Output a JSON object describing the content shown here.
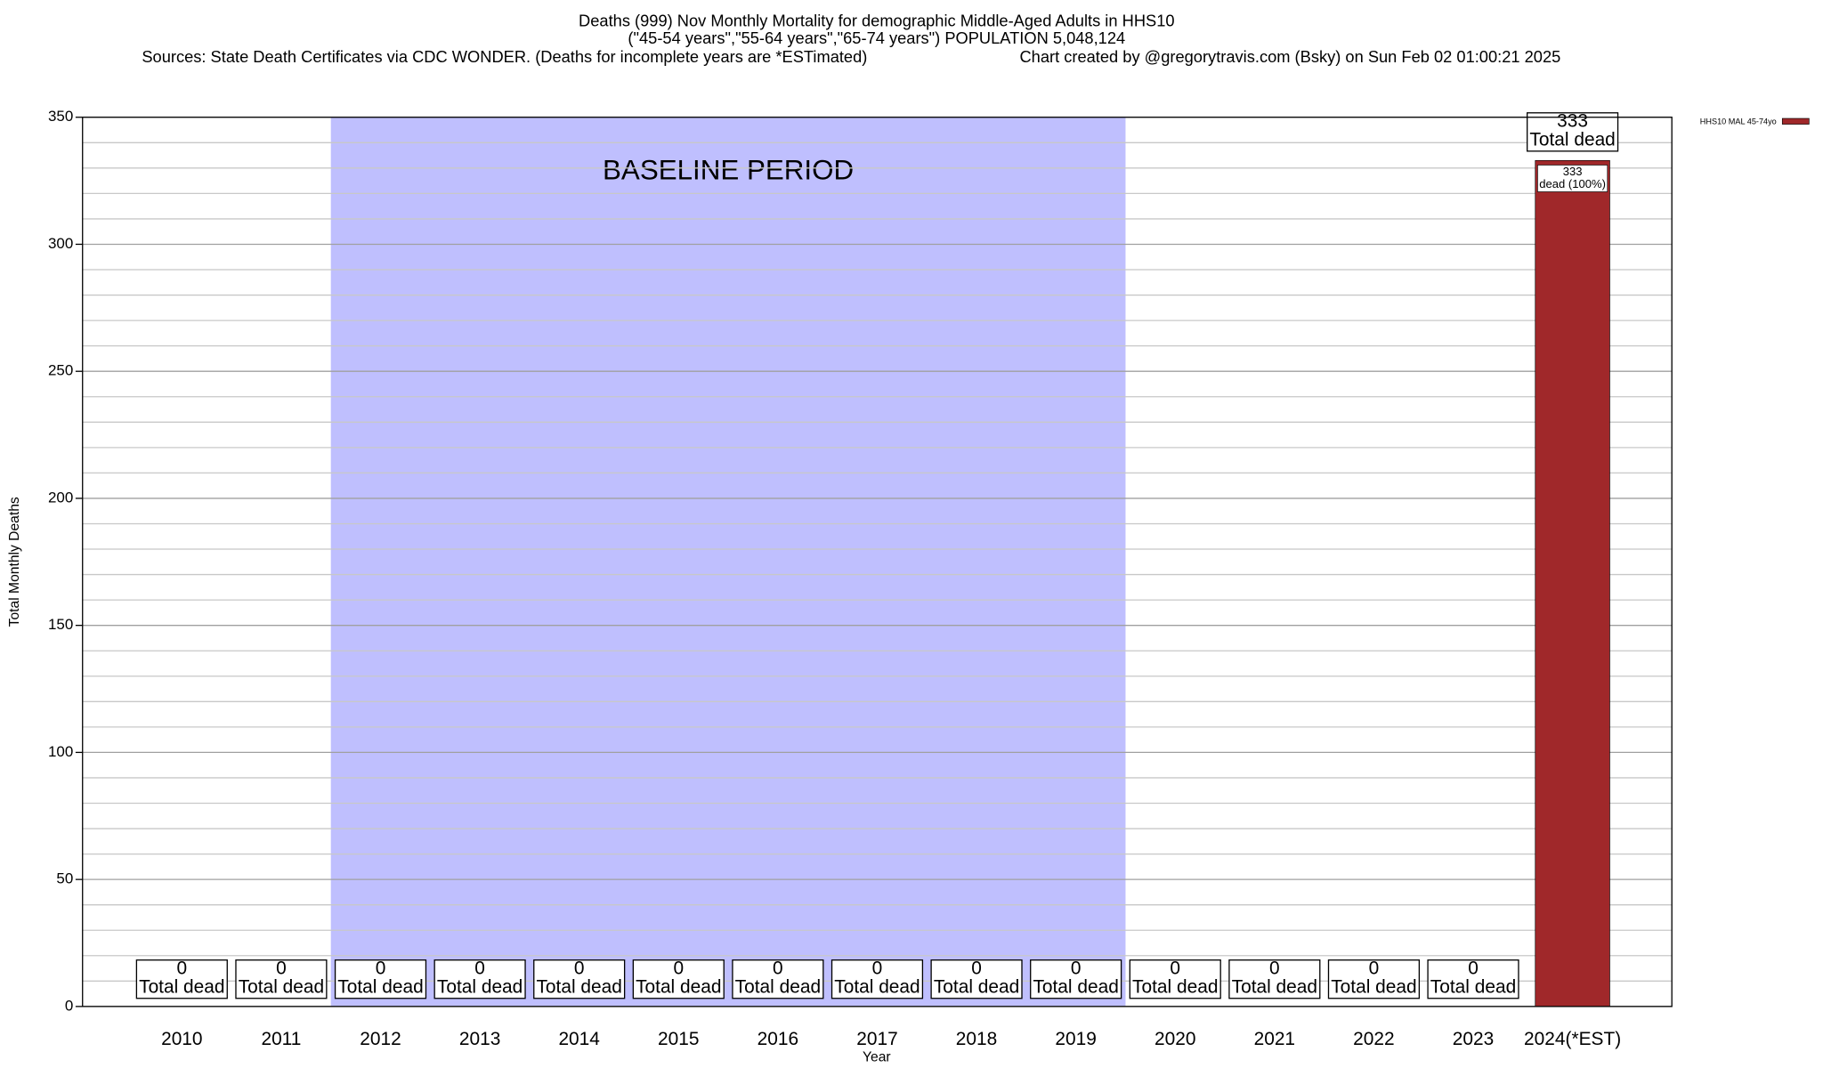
{
  "chart_data": {
    "type": "bar",
    "title": "Deaths (999) Nov Monthly Mortality for demographic Middle-Aged Adults in HHS10",
    "subtitle": "(\"45-54 years\",\"55-64 years\",\"65-74 years\") POPULATION 5,048,124",
    "source": "Sources: State Death Certificates via CDC WONDER. (Deaths for incomplete years are *ESTimated)",
    "credit": "Chart created by @gregorytravis.com (Bsky) on Sun Feb 02 01:00:21 2025",
    "x_label": "Year",
    "y_label": "Total Monthly Deaths",
    "categories": [
      "2010",
      "2011",
      "2012",
      "2013",
      "2014",
      "2015",
      "2016",
      "2017",
      "2018",
      "2019",
      "2020",
      "2021",
      "2022",
      "2023",
      "2024(*EST)"
    ],
    "series": [
      {
        "name": "HHS10 MAL 45-74yo",
        "color": "#a0282a",
        "values": [
          0,
          0,
          0,
          0,
          0,
          0,
          0,
          0,
          0,
          0,
          0,
          0,
          0,
          0,
          333
        ]
      }
    ],
    "total_label_text": "Total dead",
    "segment_label_text": "dead (100%)",
    "baseline_period": {
      "label": "BASELINE PERIOD",
      "start": "2012",
      "end": "2019",
      "color": "#bfbffe"
    },
    "ylim": [
      0,
      350
    ],
    "yticks": [
      0,
      50,
      100,
      150,
      200,
      250,
      300,
      350
    ],
    "minor_yticks": [
      10,
      20,
      30,
      40,
      60,
      70,
      80,
      90,
      110,
      120,
      130,
      140,
      160,
      170,
      180,
      190,
      210,
      220,
      230,
      240,
      260,
      270,
      280,
      290,
      310,
      320,
      330,
      340
    ],
    "grid": true
  }
}
